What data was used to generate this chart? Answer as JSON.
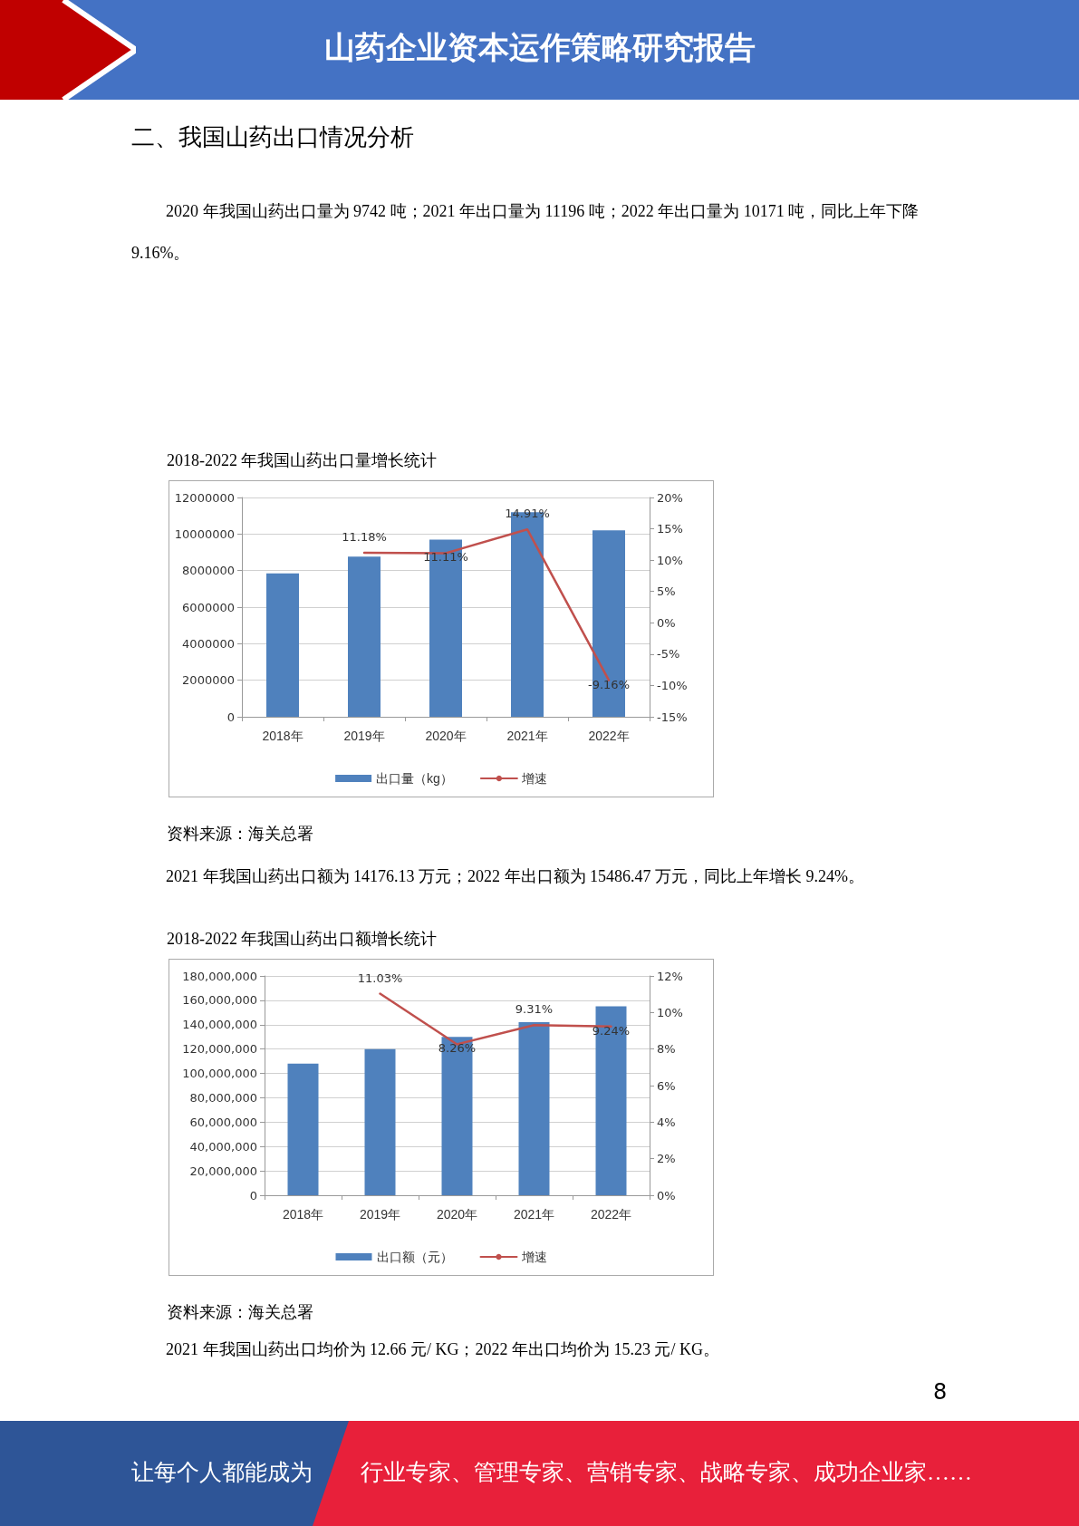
{
  "chart_data": [
    {
      "type": "bar",
      "title": "2018-2022 年我国山药出口量增长统计",
      "annotations": [
        "山药企业资本运作策略研究报告",
        "二、我国山药出口情况分析",
        "2020 年我国山药出口量为 9742 吨；2021 年出口量为 11196 吨；2022 年出口量为 10171 吨，同比上年下降 9.16%。",
        "资料来源：海关总署"
      ],
      "categories": [
        "2018年",
        "2019年",
        "2020年",
        "2021年",
        "2022年"
      ],
      "series": [
        {
          "name": "出口量（kg）",
          "color": "#4f81bd",
          "values": [
            7850000,
            8770000,
            9700000,
            11200000,
            10200000
          ]
        },
        {
          "name": "增速",
          "type": "line",
          "axis": "y2",
          "color": "#c0504d",
          "values": [
            null,
            11.18,
            11.11,
            14.91,
            -9.16
          ],
          "value_labels": [
            null,
            "11.18%",
            "11.11%",
            "14.91%",
            "-9.16%"
          ]
        }
      ],
      "ylim": [
        0,
        12000000
      ],
      "yticks": [
        0,
        2000000,
        4000000,
        6000000,
        8000000,
        10000000,
        12000000
      ],
      "y2lim": [
        -15,
        20
      ],
      "y2ticks": [
        {
          "value": -15,
          "label": "-15%"
        },
        {
          "value": -10,
          "label": "-10%"
        },
        {
          "value": -5,
          "label": "-5%"
        },
        {
          "value": 0,
          "label": "0%"
        },
        {
          "value": 5,
          "label": "5%"
        },
        {
          "value": 10,
          "label": "10%"
        },
        {
          "value": 15,
          "label": "15%"
        },
        {
          "value": 20,
          "label": "20%"
        }
      ],
      "grid": "y",
      "legend": "bottom",
      "marker": "none",
      "line_style": "solid"
    },
    {
      "type": "bar",
      "title": "2018-2022 年我国山药出口额增长统计",
      "annotations": [
        "2021 年我国山药出口额为 14176.13 万元；2022 年出口额为 15486.47 万元，同比上年增长 9.24%。",
        "资料来源：海关总署",
        "2021 年我国山药出口均价为 12.66 元/ KG；2022 年出口均价为 15.23 元/ KG。",
        "8",
        "让每个人都能成为",
        "行业专家、管理专家、营销专家、战略专家、成功企业家……"
      ],
      "categories": [
        "2018年",
        "2019年",
        "2020年",
        "2021年",
        "2022年"
      ],
      "series": [
        {
          "name": "出口额（元）",
          "color": "#4f81bd",
          "values": [
            108000000,
            120000000,
            130000000,
            142000000,
            155000000
          ]
        },
        {
          "name": "增速",
          "type": "line",
          "axis": "y2",
          "color": "#c0504d",
          "values": [
            null,
            11.03,
            8.26,
            9.31,
            9.24
          ],
          "value_labels": [
            null,
            "11.03%",
            "8.26%",
            "9.31%",
            "9.24%"
          ]
        }
      ],
      "ylim": [
        0,
        180000000
      ],
      "yticks": [
        {
          "value": 0,
          "label": "0"
        },
        {
          "value": 20000000,
          "label": "20,000,000"
        },
        {
          "value": 40000000,
          "label": "40,000,000"
        },
        {
          "value": 60000000,
          "label": "60,000,000"
        },
        {
          "value": 80000000,
          "label": "80,000,000"
        },
        {
          "value": 100000000,
          "label": "100,000,000"
        },
        {
          "value": 120000000,
          "label": "120,000,000"
        },
        {
          "value": 140000000,
          "label": "140,000,000"
        },
        {
          "value": 160000000,
          "label": "160,000,000"
        },
        {
          "value": 180000000,
          "label": "180,000,000"
        }
      ],
      "y2lim": [
        0,
        12
      ],
      "y2ticks": [
        {
          "value": 0,
          "label": "0%"
        },
        {
          "value": 2,
          "label": "2%"
        },
        {
          "value": 4,
          "label": "4%"
        },
        {
          "value": 6,
          "label": "6%"
        },
        {
          "value": 8,
          "label": "8%"
        },
        {
          "value": 10,
          "label": "10%"
        },
        {
          "value": 12,
          "label": "12%"
        }
      ],
      "grid": "y",
      "legend": "bottom",
      "marker": "none",
      "line_style": "solid"
    }
  ]
}
